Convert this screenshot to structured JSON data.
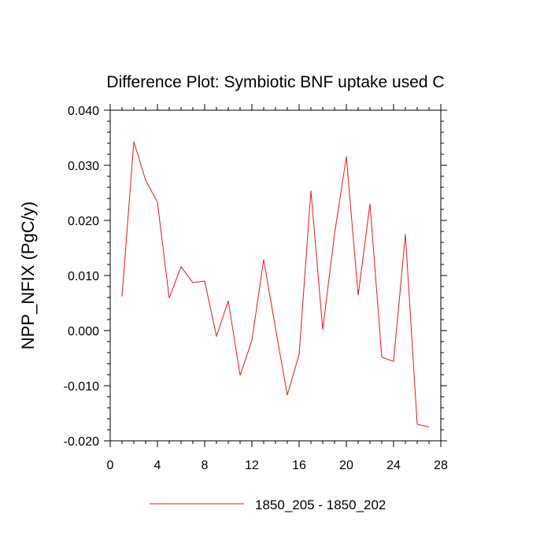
{
  "chart_data": {
    "type": "line",
    "title": "Difference Plot: Symbiotic BNF uptake used C",
    "xlabel": "",
    "ylabel": "NPP_NFIX  (PgC/y)",
    "xlim": [
      0,
      28
    ],
    "ylim": [
      -0.02,
      0.04
    ],
    "x_ticks": [
      "0",
      "4",
      "8",
      "12",
      "16",
      "20",
      "24",
      "28"
    ],
    "y_ticks": [
      "-0.020",
      "-0.010",
      "0.000",
      "0.010",
      "0.020",
      "0.030",
      "0.040"
    ],
    "grid": false,
    "legend_position": "bottom",
    "series": [
      {
        "name": "1850_205 - 1850_202",
        "color": "#e8191c",
        "x": [
          1,
          2,
          3,
          4,
          5,
          6,
          7,
          8,
          9,
          10,
          11,
          12,
          13,
          14,
          15,
          16,
          17,
          18,
          19,
          20,
          21,
          22,
          23,
          24,
          25,
          26,
          27
        ],
        "values": [
          0.0062,
          0.0343,
          0.0273,
          0.0233,
          0.0059,
          0.0116,
          0.0087,
          0.009,
          -0.001,
          0.0054,
          -0.0081,
          -0.0018,
          0.0129,
          0.0004,
          -0.0117,
          -0.0043,
          0.0254,
          0.0002,
          0.0175,
          0.0316,
          0.0064,
          0.023,
          -0.0048,
          -0.0056,
          0.0175,
          -0.017,
          -0.0175
        ]
      }
    ]
  }
}
